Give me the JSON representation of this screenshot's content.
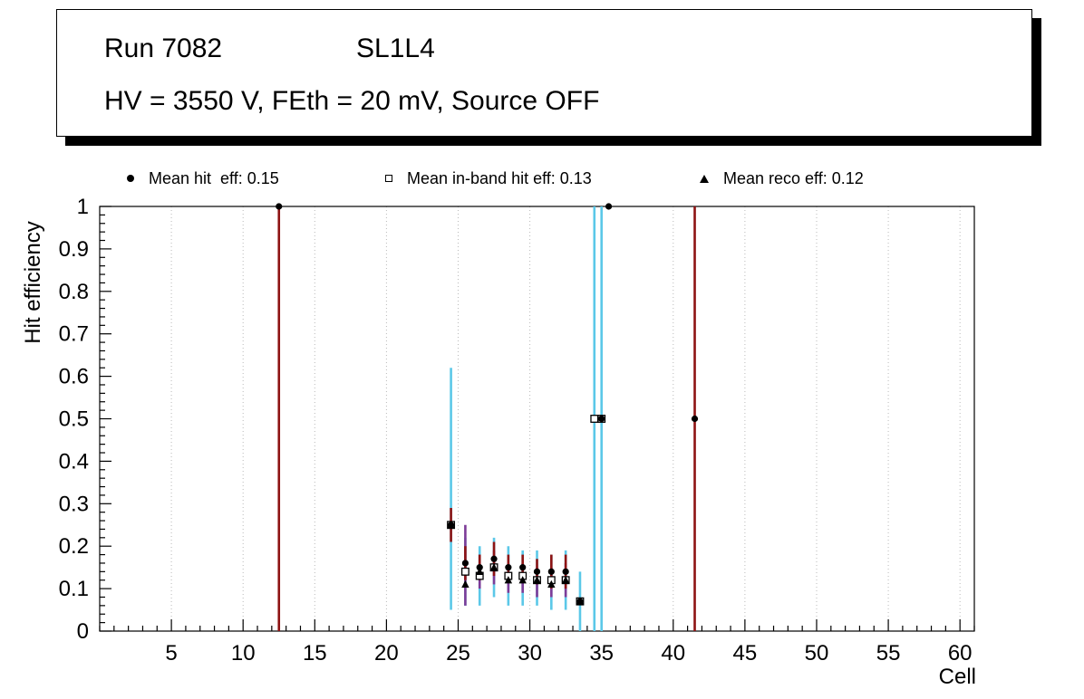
{
  "title_box": {
    "run": "Run 7082",
    "chamber": "SL1L4",
    "conditions": "HV = 3550 V, FEth = 20 mV, Source OFF"
  },
  "legend": {
    "entries": [
      {
        "marker": "filled-circle",
        "label": "Mean hit  eff: 0.15"
      },
      {
        "marker": "open-square",
        "label": "Mean in-band hit eff: 0.13"
      },
      {
        "marker": "filled-triangle",
        "label": "Mean reco eff: 0.12"
      }
    ]
  },
  "chart_data": {
    "type": "scatter",
    "title": "",
    "xlabel": "Cell",
    "ylabel": "Hit efficiency",
    "xlim": [
      0,
      61
    ],
    "ylim": [
      0,
      1
    ],
    "xticks": [
      5,
      10,
      15,
      20,
      25,
      30,
      35,
      40,
      45,
      50,
      55,
      60
    ],
    "yticks": [
      0,
      0.1,
      0.2,
      0.3,
      0.4,
      0.5,
      0.6,
      0.7,
      0.8,
      0.9,
      1
    ],
    "grid": "vertical-dotted",
    "legend_position": "top",
    "colors": {
      "marker": "#000000",
      "hit_error": "#8e1313",
      "inband_error": "#5bc8e8",
      "reco_error": "#7d3c98",
      "grid": "#b9b9b9"
    },
    "series": [
      {
        "name": "Mean hit eff",
        "mean": 0.15,
        "marker": "filled-circle",
        "error_color": "#8e1313",
        "points": [
          [
            12.5,
            1.0,
            0.0,
            1.0
          ],
          [
            24.5,
            0.25,
            0.21,
            0.29
          ],
          [
            25.5,
            0.16,
            0.12,
            0.2
          ],
          [
            26.5,
            0.15,
            0.12,
            0.18
          ],
          [
            27.5,
            0.17,
            0.13,
            0.21
          ],
          [
            28.5,
            0.15,
            0.12,
            0.18
          ],
          [
            29.5,
            0.15,
            0.12,
            0.18
          ],
          [
            30.5,
            0.14,
            0.11,
            0.17
          ],
          [
            31.5,
            0.14,
            0.1,
            0.18
          ],
          [
            32.5,
            0.14,
            0.1,
            0.18
          ],
          [
            33.5,
            0.07,
            null,
            null
          ],
          [
            35.0,
            0.5,
            null,
            null
          ],
          [
            35.5,
            1.0,
            null,
            null
          ],
          [
            41.5,
            0.5,
            0.0,
            1.0
          ]
        ]
      },
      {
        "name": "Mean in-band hit eff",
        "mean": 0.13,
        "marker": "open-square",
        "error_color": "#5bc8e8",
        "points": [
          [
            24.5,
            0.25,
            0.05,
            0.62
          ],
          [
            25.5,
            0.14,
            0.06,
            0.22
          ],
          [
            26.5,
            0.13,
            0.06,
            0.2
          ],
          [
            27.5,
            0.15,
            0.08,
            0.22
          ],
          [
            28.5,
            0.13,
            0.06,
            0.2
          ],
          [
            29.5,
            0.13,
            0.06,
            0.19
          ],
          [
            30.5,
            0.12,
            0.06,
            0.19
          ],
          [
            31.5,
            0.12,
            0.05,
            0.18
          ],
          [
            32.5,
            0.12,
            0.05,
            0.19
          ],
          [
            33.5,
            0.07,
            0.0,
            0.14
          ],
          [
            34.5,
            0.5,
            0.0,
            1.0
          ],
          [
            35.0,
            0.5,
            0.0,
            1.0
          ]
        ]
      },
      {
        "name": "Mean reco eff",
        "mean": 0.12,
        "marker": "filled-triangle",
        "error_color": "#7d3c98",
        "points": [
          [
            24.5,
            0.25,
            null,
            null
          ],
          [
            25.5,
            0.11,
            0.06,
            0.25
          ],
          [
            26.5,
            0.14,
            0.1,
            0.18
          ],
          [
            27.5,
            0.15,
            0.11,
            0.19
          ],
          [
            28.5,
            0.12,
            0.09,
            0.16
          ],
          [
            29.5,
            0.12,
            0.09,
            0.16
          ],
          [
            30.5,
            0.12,
            0.08,
            0.15
          ],
          [
            31.5,
            0.11,
            0.08,
            0.15
          ],
          [
            32.5,
            0.12,
            0.08,
            0.16
          ],
          [
            33.5,
            0.07,
            null,
            null
          ]
        ]
      }
    ]
  }
}
